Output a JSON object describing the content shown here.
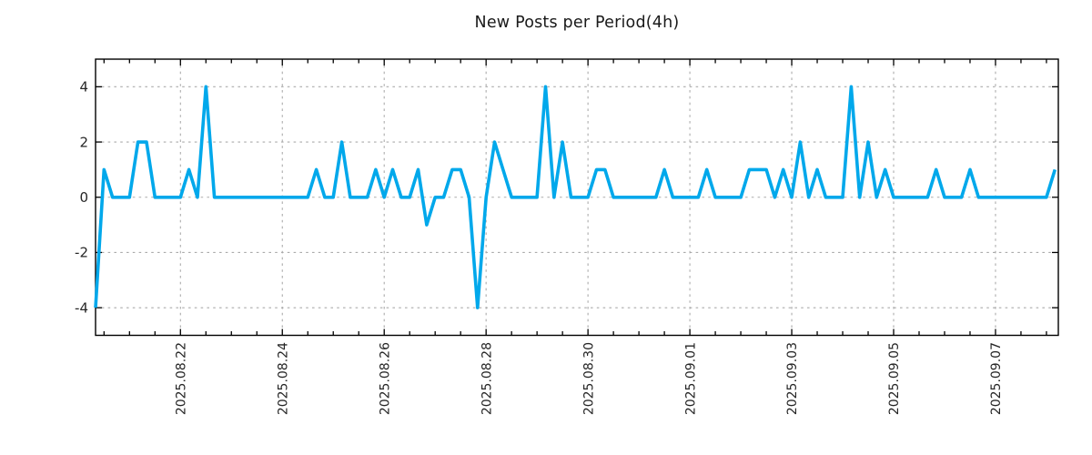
{
  "chart_data": {
    "type": "line",
    "title": "New Posts per Period(4h)",
    "period_hours": 4,
    "x_tick_labels": [
      "2025.08.22",
      "2025.08.24",
      "2025.08.26",
      "2025.08.28",
      "2025.08.30",
      "2025.09.01",
      "2025.09.03",
      "2025.09.05",
      "2025.09.07"
    ],
    "x_first_tick_index": 10,
    "x_indices_per_tick": 12,
    "x_minor_tick_start": 1,
    "x_minor_tick_step": 3,
    "xlim_indices": [
      0,
      113.4
    ],
    "y_ticks": [
      -4,
      -2,
      0,
      2,
      4
    ],
    "ylim": [
      -5,
      5
    ],
    "grid": "dashed",
    "legend": "none",
    "values": [
      -4,
      1,
      0,
      0,
      0,
      2,
      2,
      0,
      0,
      0,
      0,
      1,
      0,
      4,
      0,
      0,
      0,
      0,
      0,
      0,
      0,
      0,
      0,
      0,
      0,
      0,
      1,
      0,
      0,
      2,
      0,
      0,
      0,
      1,
      0,
      1,
      0,
      0,
      1,
      -1,
      0,
      0,
      1,
      1,
      0,
      -4,
      0,
      2,
      1,
      0,
      0,
      0,
      0,
      4,
      0,
      2,
      0,
      0,
      0,
      1,
      1,
      0,
      0,
      0,
      0,
      0,
      0,
      1,
      0,
      0,
      0,
      0,
      1,
      0,
      0,
      0,
      0,
      1,
      1,
      1,
      0,
      1,
      0,
      2,
      0,
      1,
      0,
      0,
      0,
      4,
      0,
      2,
      0,
      1,
      0,
      0,
      0,
      0,
      0,
      1,
      0,
      0,
      0,
      1,
      0,
      0,
      0,
      0,
      0,
      0,
      0,
      0,
      0,
      1
    ]
  },
  "style": {
    "line_color": "#00A8EB",
    "grid_color": "#ababab",
    "axis_color": "#000000",
    "text_color": "#262626",
    "background": "#ffffff"
  }
}
